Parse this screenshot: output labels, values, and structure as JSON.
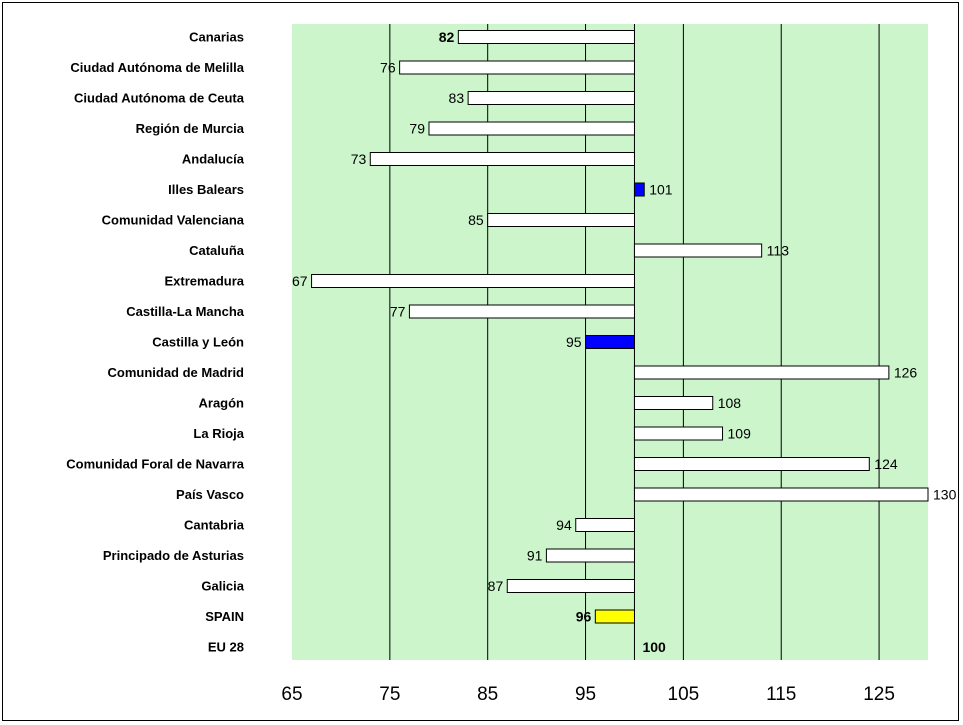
{
  "chart_data": {
    "type": "bar",
    "orientation": "horizontal",
    "categories": [
      "Canarias",
      "Ciudad Autónoma de Melilla",
      "Ciudad Autónoma de Ceuta",
      "Región de Murcia",
      "Andalucía",
      "Illes Balears",
      "Comunidad Valenciana",
      "Cataluña",
      "Extremadura",
      "Castilla-La Mancha",
      "Castilla y León",
      "Comunidad de Madrid",
      "Aragón",
      "La Rioja",
      "Comunidad Foral de Navarra",
      "País Vasco",
      "Cantabria",
      "Principado de Asturias",
      "Galicia",
      "SPAIN",
      "EU 28"
    ],
    "values": [
      82,
      76,
      83,
      79,
      73,
      101,
      85,
      113,
      67,
      77,
      95,
      126,
      108,
      109,
      124,
      130,
      94,
      91,
      87,
      96,
      100
    ],
    "value_labels": [
      "82",
      "76",
      "83",
      "79",
      "73",
      "101",
      "85",
      "113",
      "67",
      "77",
      "95",
      "126",
      "108",
      "109",
      "124",
      "130",
      "94",
      "91",
      "87",
      "96",
      "100"
    ],
    "bold_labels": [
      "Canarias",
      "SPAIN",
      "EU 28"
    ],
    "baseline": 100,
    "xlim": [
      65,
      130
    ],
    "xticks": [
      "65",
      "75",
      "85",
      "95",
      "105",
      "115",
      "125"
    ],
    "xtick_values": [
      65,
      75,
      85,
      95,
      105,
      115,
      125
    ],
    "grid": "vertical",
    "plot_background": "#ccf5cc",
    "colors": {
      "default_bar": "#ffffff",
      "Illes Balears": "#0000ff",
      "Castilla y León": "#0000ff",
      "SPAIN": "#ffff00"
    }
  }
}
